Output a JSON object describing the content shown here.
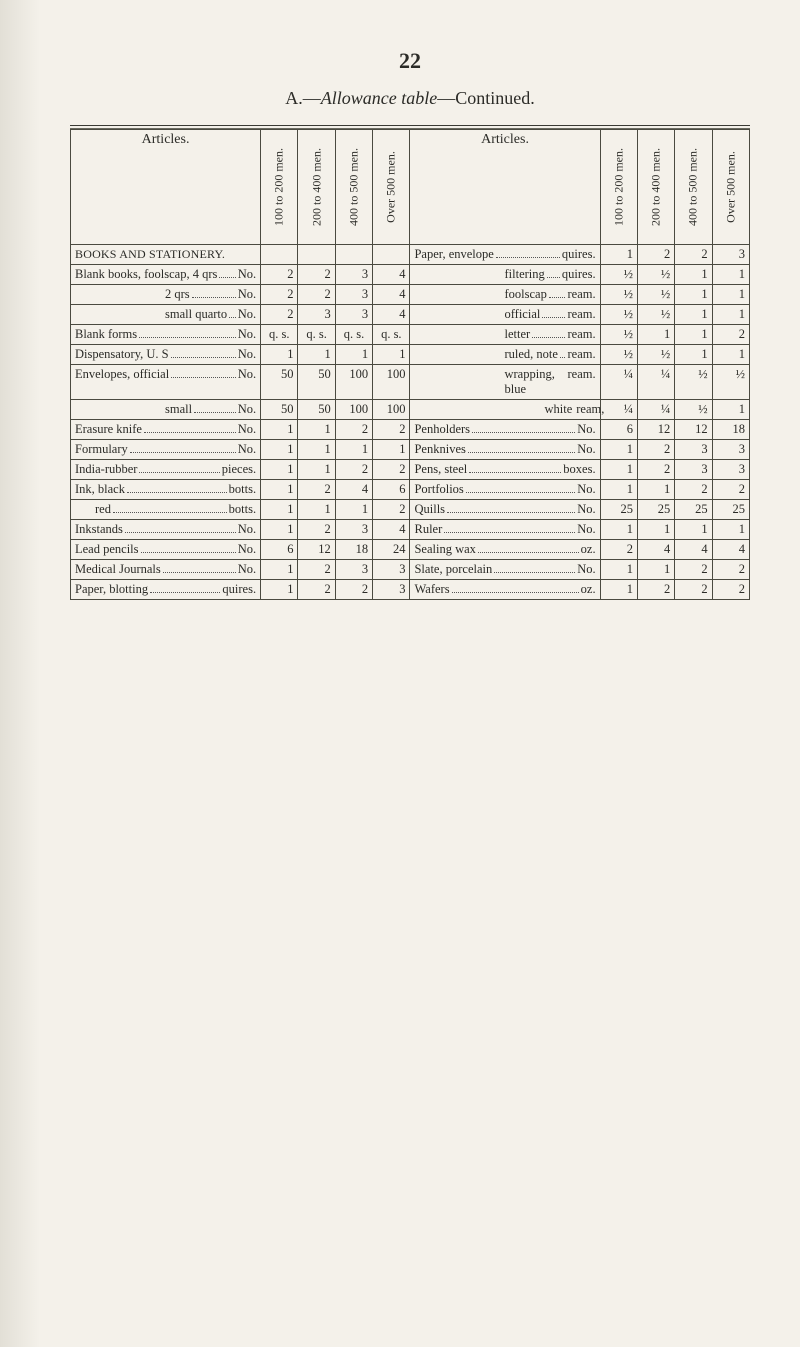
{
  "page_number": "22",
  "title_prefix": "A.—",
  "title_italic": "Allowance table",
  "title_suffix": "—Continued.",
  "columns": {
    "c1": "100 to 200 men.",
    "c2": "200 to 400 men.",
    "c3": "400 to 500 men.",
    "c4": "Over 500 men."
  },
  "articles_label": "Articles.",
  "section_header_left": "BOOKS AND STATIONERY.",
  "left_rows": [
    {
      "pre": "Blank books, foolscap, 4 qrs",
      "suf": "No.",
      "v": [
        "2",
        "2",
        "3",
        "4"
      ]
    },
    {
      "pre": "2 qrs",
      "suf": "No.",
      "indent_right": true,
      "v": [
        "2",
        "2",
        "3",
        "4"
      ]
    },
    {
      "pre": "small quarto",
      "suf": "No.",
      "indent_right": true,
      "v": [
        "2",
        "3",
        "3",
        "4"
      ]
    },
    {
      "pre": "Blank forms",
      "suf": "No.",
      "v": [
        "q. s.",
        "q. s.",
        "q. s.",
        "q. s."
      ]
    },
    {
      "pre": "Dispensatory, U. S",
      "suf": "No.",
      "v": [
        "1",
        "1",
        "1",
        "1"
      ]
    },
    {
      "pre": "Envelopes, official",
      "suf": "No.",
      "v": [
        "50",
        "50",
        "100",
        "100"
      ]
    },
    {
      "pre": "small",
      "suf": "No.",
      "indent_right": true,
      "v": [
        "50",
        "50",
        "100",
        "100"
      ]
    },
    {
      "pre": "Erasure knife",
      "suf": "No.",
      "v": [
        "1",
        "1",
        "2",
        "2"
      ]
    },
    {
      "pre": "Formulary",
      "suf": "No.",
      "v": [
        "1",
        "1",
        "1",
        "1"
      ]
    },
    {
      "pre": "India-rubber",
      "suf": "pieces.",
      "v": [
        "1",
        "1",
        "2",
        "2"
      ]
    },
    {
      "pre": "Ink, black",
      "suf": "botts.",
      "v": [
        "1",
        "2",
        "4",
        "6"
      ]
    },
    {
      "pre": "red",
      "suf": "botts.",
      "indent": true,
      "v": [
        "1",
        "1",
        "1",
        "2"
      ]
    },
    {
      "pre": "Inkstands",
      "suf": "No.",
      "v": [
        "1",
        "2",
        "3",
        "4"
      ]
    },
    {
      "pre": "Lead pencils",
      "suf": "No.",
      "v": [
        "6",
        "12",
        "18",
        "24"
      ]
    },
    {
      "pre": "Medical Journals",
      "suf": "No.",
      "v": [
        "1",
        "2",
        "3",
        "3"
      ]
    },
    {
      "pre": "Paper, blotting",
      "suf": "quires.",
      "v": [
        "1",
        "2",
        "2",
        "3"
      ]
    }
  ],
  "right_rows": [
    {
      "pre": "Paper, envelope",
      "suf": "quires.",
      "v": [
        "1",
        "2",
        "2",
        "3"
      ]
    },
    {
      "pre": "filtering",
      "suf": "quires.",
      "indent_right": true,
      "v": [
        "½",
        "½",
        "1",
        "1"
      ]
    },
    {
      "pre": "foolscap",
      "suf": "ream.",
      "indent_right": true,
      "v": [
        "½",
        "½",
        "1",
        "1"
      ]
    },
    {
      "pre": "official",
      "suf": "ream.",
      "indent_right": true,
      "v": [
        "½",
        "½",
        "1",
        "1"
      ]
    },
    {
      "pre": "letter",
      "suf": "ream.",
      "indent_right": true,
      "v": [
        "½",
        "1",
        "1",
        "2"
      ]
    },
    {
      "pre": "ruled, note",
      "suf": "ream.",
      "indent_right": true,
      "v": [
        "½",
        "½",
        "1",
        "1"
      ]
    },
    {
      "pre": "wrapping, blue",
      "suf": "ream.",
      "indent_right": true,
      "v": [
        "¼",
        "¼",
        "½",
        "½"
      ]
    },
    {
      "pre": "white",
      "suf": "ream,",
      "indent_far": true,
      "v": [
        "¼",
        "¼",
        "½",
        "1"
      ]
    },
    {
      "pre": "Penholders",
      "suf": "No.",
      "v": [
        "6",
        "12",
        "12",
        "18"
      ]
    },
    {
      "pre": "Penknives",
      "suf": "No.",
      "v": [
        "1",
        "2",
        "3",
        "3"
      ]
    },
    {
      "pre": "Pens, steel",
      "suf": "boxes.",
      "v": [
        "1",
        "2",
        "3",
        "3"
      ]
    },
    {
      "pre": "Portfolios",
      "suf": "No.",
      "v": [
        "1",
        "1",
        "2",
        "2"
      ]
    },
    {
      "pre": "Quills",
      "suf": "No.",
      "v": [
        "25",
        "25",
        "25",
        "25"
      ]
    },
    {
      "pre": "Ruler",
      "suf": "No.",
      "v": [
        "1",
        "1",
        "1",
        "1"
      ]
    },
    {
      "pre": "Sealing wax",
      "suf": "oz.",
      "v": [
        "2",
        "4",
        "4",
        "4"
      ]
    },
    {
      "pre": "Slate, porcelain",
      "suf": "No.",
      "v": [
        "1",
        "1",
        "2",
        "2"
      ]
    },
    {
      "pre": "Wafers",
      "suf": "oz.",
      "v": [
        "1",
        "2",
        "2",
        "2"
      ]
    }
  ],
  "colors": {
    "bg": "#f4f1ea",
    "text": "#2b2b27",
    "rule": "#3a3a34"
  }
}
